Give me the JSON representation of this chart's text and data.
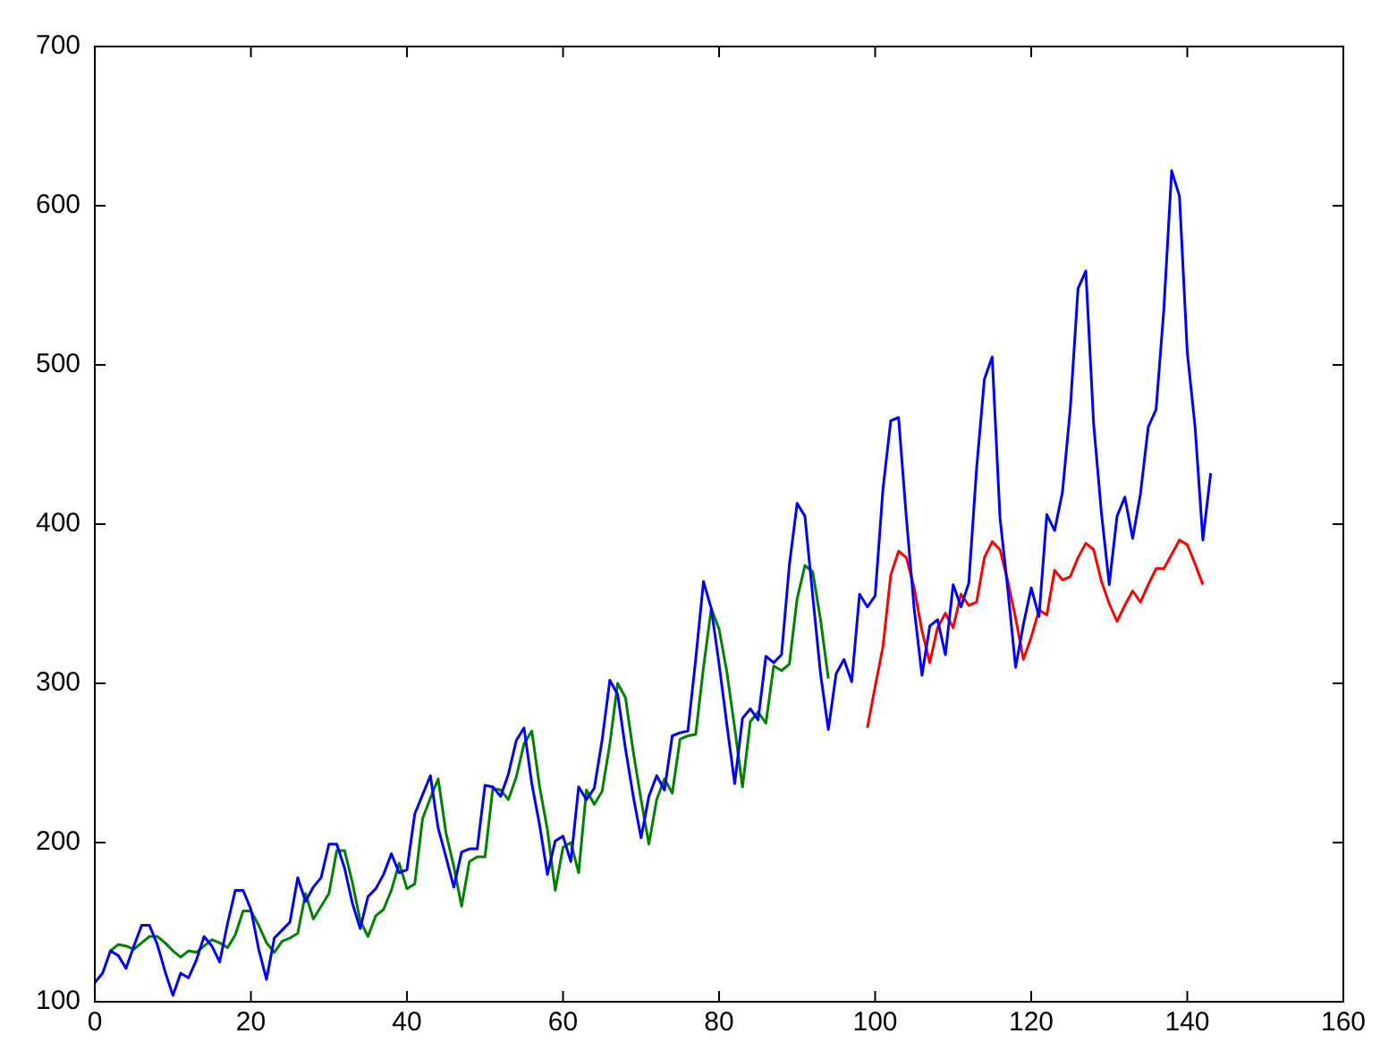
{
  "chart_data": {
    "type": "line",
    "xlim": [
      0,
      160
    ],
    "ylim": [
      100,
      700
    ],
    "xticks": [
      0,
      20,
      40,
      60,
      80,
      100,
      120,
      140,
      160
    ],
    "yticks": [
      100,
      200,
      300,
      400,
      500,
      600,
      700
    ],
    "grid": false,
    "legend": false,
    "marker": "none",
    "line_style": "solid",
    "series": [
      {
        "color": "#0000ff",
        "x": [
          0,
          1,
          2,
          3,
          4,
          5,
          6,
          7,
          8,
          9,
          10,
          11,
          12,
          13,
          14,
          15,
          16,
          17,
          18,
          19,
          20,
          21,
          22,
          23,
          24,
          25,
          26,
          27,
          28,
          29,
          30,
          31,
          32,
          33,
          34,
          35,
          36,
          37,
          38,
          39,
          40,
          41,
          42,
          43,
          44,
          45,
          46,
          47,
          48,
          49,
          50,
          51,
          52,
          53,
          54,
          55,
          56,
          57,
          58,
          59,
          60,
          61,
          62,
          63,
          64,
          65,
          66,
          67,
          68,
          69,
          70,
          71,
          72,
          73,
          74,
          75,
          76,
          77,
          78,
          79,
          80,
          81,
          82,
          83,
          84,
          85,
          86,
          87,
          88,
          89,
          90,
          91,
          92,
          93,
          94,
          95,
          96,
          97,
          98,
          99,
          100,
          101,
          102,
          103,
          104,
          105,
          106,
          107,
          108,
          109,
          110,
          111,
          112,
          113,
          114,
          115,
          116,
          117,
          118,
          119,
          120,
          121,
          122,
          123,
          124,
          125,
          126,
          127,
          128,
          129,
          130,
          131,
          132,
          133,
          134,
          135,
          136,
          137,
          138,
          139,
          140,
          141,
          142,
          143
        ],
        "values": [
          112,
          118,
          132,
          129,
          121,
          135,
          148,
          148,
          136,
          119,
          104,
          118,
          115,
          126,
          141,
          135,
          125,
          149,
          170,
          170,
          158,
          133,
          114,
          140,
          145,
          150,
          178,
          163,
          172,
          178,
          199,
          199,
          184,
          162,
          146,
          166,
          171,
          180,
          193,
          181,
          183,
          218,
          230,
          242,
          209,
          191,
          172,
          194,
          196,
          196,
          236,
          235,
          229,
          243,
          264,
          272,
          237,
          211,
          180,
          201,
          204,
          188,
          235,
          227,
          234,
          264,
          302,
          293,
          259,
          229,
          203,
          229,
          242,
          233,
          267,
          269,
          270,
          315,
          364,
          347,
          312,
          274,
          237,
          278,
          284,
          277,
          317,
          313,
          318,
          374,
          413,
          405,
          355,
          306,
          271,
          306,
          315,
          301,
          356,
          348,
          355,
          422,
          465,
          467,
          404,
          347,
          305,
          336,
          340,
          318,
          362,
          348,
          363,
          435,
          491,
          505,
          404,
          359,
          310,
          337,
          360,
          342,
          406,
          396,
          420,
          472,
          548,
          559,
          463,
          407,
          362,
          405,
          417,
          391,
          419,
          461,
          472,
          535,
          622,
          606,
          508,
          461,
          390,
          432
        ]
      },
      {
        "color": "#008000",
        "x": [
          2,
          3,
          4,
          5,
          6,
          7,
          8,
          9,
          10,
          11,
          12,
          13,
          14,
          15,
          16,
          17,
          18,
          19,
          20,
          21,
          22,
          23,
          24,
          25,
          26,
          27,
          28,
          29,
          30,
          31,
          32,
          33,
          34,
          35,
          36,
          37,
          38,
          39,
          40,
          41,
          42,
          43,
          44,
          45,
          46,
          47,
          48,
          49,
          50,
          51,
          52,
          53,
          54,
          55,
          56,
          57,
          58,
          59,
          60,
          61,
          62,
          63,
          64,
          65,
          66,
          67,
          68,
          69,
          70,
          71,
          72,
          73,
          74,
          75,
          76,
          77,
          78,
          79,
          80,
          81,
          82,
          83,
          84,
          85,
          86,
          87,
          88,
          89,
          90,
          91,
          92,
          93,
          94
        ],
        "values": [
          132,
          136,
          135,
          133,
          137,
          141,
          141,
          137,
          132,
          128,
          132,
          131,
          135,
          139,
          137,
          134,
          142,
          157,
          157,
          148,
          137,
          131,
          138,
          140,
          143,
          168,
          152,
          160,
          168,
          195,
          195,
          175,
          151,
          141,
          154,
          158,
          170,
          187,
          171,
          174,
          215,
          228,
          240,
          206,
          185,
          160,
          188,
          191,
          191,
          234,
          233,
          227,
          241,
          262,
          270,
          235,
          208,
          170,
          197,
          200,
          181,
          233,
          224,
          232,
          262,
          300,
          291,
          257,
          227,
          199,
          227,
          240,
          231,
          265,
          267,
          268,
          310,
          347,
          334,
          307,
          272,
          235,
          276,
          282,
          275,
          311,
          308,
          312,
          353,
          374,
          370,
          340,
          303
        ]
      },
      {
        "color": "#ff0000",
        "x": [
          99,
          100,
          101,
          102,
          103,
          104,
          105,
          106,
          107,
          108,
          109,
          110,
          111,
          112,
          113,
          114,
          115,
          116,
          117,
          118,
          119,
          120,
          121,
          122,
          123,
          124,
          125,
          126,
          127,
          128,
          129,
          130,
          131,
          132,
          133,
          134,
          135,
          136,
          137,
          138,
          139,
          140,
          141,
          142
        ],
        "values": [
          272,
          298,
          323,
          368,
          383,
          379,
          360,
          333,
          313,
          335,
          344,
          335,
          356,
          349,
          351,
          379,
          389,
          384,
          364,
          341,
          315,
          329,
          346,
          343,
          371,
          365,
          367,
          379,
          388,
          384,
          364,
          350,
          339,
          349,
          358,
          351,
          362,
          372,
          372,
          381,
          390,
          387,
          375,
          362
        ]
      }
    ]
  }
}
